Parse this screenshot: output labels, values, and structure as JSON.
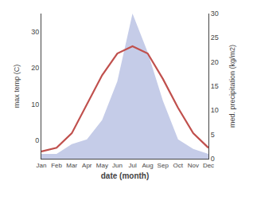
{
  "chart_data": {
    "type": "line",
    "categories": [
      "Jan",
      "Feb",
      "Mar",
      "Apr",
      "May",
      "Jun",
      "Jul",
      "Aug",
      "Sep",
      "Oct",
      "Nov",
      "Dec"
    ],
    "xlabel": "date (month)",
    "ylabel": "max temp (C)",
    "y2label": "med. precipitation (kg/m2)",
    "series": [
      {
        "type": "area",
        "axis": "y2",
        "color": "#c5cce8",
        "values": [
          1,
          1,
          3,
          4,
          8,
          16,
          30,
          22,
          12,
          4,
          2,
          1
        ]
      },
      {
        "type": "line",
        "axis": "y",
        "color": "#c0504d",
        "values": [
          -3,
          -2,
          2,
          10,
          18,
          24,
          26,
          24,
          17,
          9,
          2,
          -2
        ]
      }
    ],
    "ylim": [
      -5,
      35
    ],
    "yticks": [
      0,
      10,
      20,
      30
    ],
    "y2lim": [
      0,
      30
    ],
    "y2ticks": [
      0,
      5,
      10,
      15,
      20,
      25,
      30
    ],
    "grid": false
  }
}
